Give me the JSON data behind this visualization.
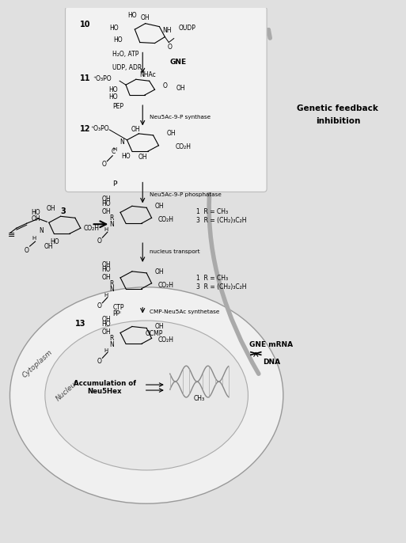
{
  "bg_color": "#e0e0e0",
  "box_facecolor": "#f2f2f2",
  "box_edgecolor": "#bbbbbb",
  "text_color": "#000000",
  "gray_arrow": "#999999",
  "compounds": {
    "10_label": "10",
    "11_label": "11",
    "12_label": "12",
    "13_label": "13",
    "3_label": "3",
    "h2o_atp": "H₂O, ATP",
    "udp_adp": "UDP, ADP",
    "gne": "GNE",
    "pep": "PEP",
    "synthase": "Neu5Ac-9-P synthase",
    "pi": "Pᴵ",
    "phosphatase": "Neu5Ac-9-P phosphatase",
    "r1": "1  R = CH₃",
    "r3": "3  R = (CH₂)₃C₂H",
    "nucleus_transport": "nucleus transport",
    "cytoplasm": "Cytoplasm",
    "nucleus": "Nucleus",
    "ctp": "CTP",
    "ppi": "PPᴵ",
    "synthetase": "CMP-Neu5Ac synthetase",
    "ocmp": "OCMP",
    "accum_line1": "Accumulation of",
    "accum_line2": "Neu5Hex",
    "gne_mrna": "GNE mRNA",
    "dna": "DNA",
    "ch3": "CH₃",
    "genetic_fb_line1": "Genetic feedback",
    "genetic_fb_line2": "inhibition"
  }
}
